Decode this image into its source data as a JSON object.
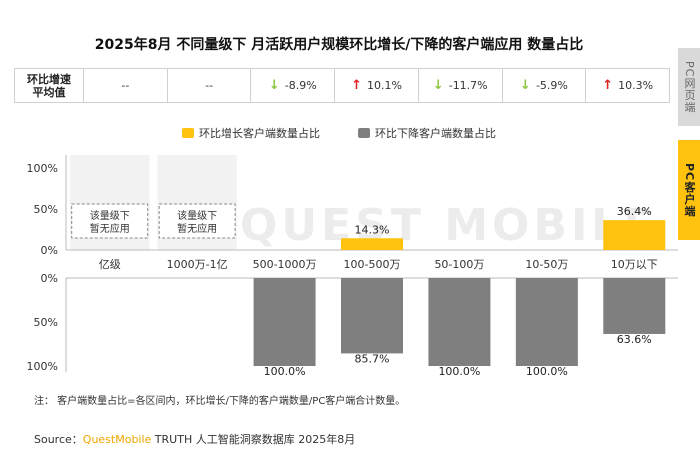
{
  "title": "2025年8月 不同量级下 月活跃用户规模环比增长/下降的客户端应用 数量占比",
  "stats_row": {
    "header": "环比增速\n平均值",
    "cells": [
      {
        "text": "--",
        "dir": ""
      },
      {
        "text": "--",
        "dir": ""
      },
      {
        "text": "-8.9%",
        "dir": "down"
      },
      {
        "text": "10.1%",
        "dir": "up"
      },
      {
        "text": "-11.7%",
        "dir": "down"
      },
      {
        "text": "-5.9%",
        "dir": "down"
      },
      {
        "text": "10.3%",
        "dir": "up"
      }
    ]
  },
  "legend": {
    "growth": "环比增长客户端数量占比",
    "decline": "环比下降客户端数量占比"
  },
  "side_tabs": {
    "web": "PC网页端",
    "app": "PC客户端"
  },
  "watermark": "QUEST MOBILE",
  "no_app_label": "该量级下\n暂无应用",
  "colors": {
    "growth": "#ffc20e",
    "decline": "#7f7f7f",
    "grid": "#d9d9d9",
    "shade": "#f2f2f2"
  },
  "chart_data": {
    "type": "bar",
    "categories": [
      "亿级",
      "1000万-1亿",
      "500-1000万",
      "100-500万",
      "50-100万",
      "10-50万",
      "10万以下"
    ],
    "series": [
      {
        "name": "环比增长客户端数量占比",
        "values": [
          null,
          null,
          0,
          14.3,
          0,
          0,
          36.4
        ],
        "labels": [
          "",
          "",
          "",
          "14.3%",
          "",
          "",
          "36.4%"
        ]
      },
      {
        "name": "环比下降客户端数量占比",
        "values": [
          null,
          null,
          100,
          85.7,
          100,
          100,
          63.6
        ],
        "labels": [
          "",
          "",
          "100.0%",
          "85.7%",
          "100.0%",
          "100.0%",
          "63.6%"
        ]
      }
    ],
    "y_ticks_top": [
      "100%",
      "50%",
      "0%"
    ],
    "y_ticks_bottom": [
      "0%",
      "50%",
      "100%"
    ],
    "ylim": [
      0,
      100
    ],
    "grid": false
  },
  "note": "注： 客户端数量占比=各区间内，环比增长/下降的客户端数量/PC客户端合计数量。",
  "source": {
    "prefix": "Source：",
    "brand": "QuestMobile",
    "suffix": " TRUTH 人工智能洞察数据库 2025年8月"
  }
}
